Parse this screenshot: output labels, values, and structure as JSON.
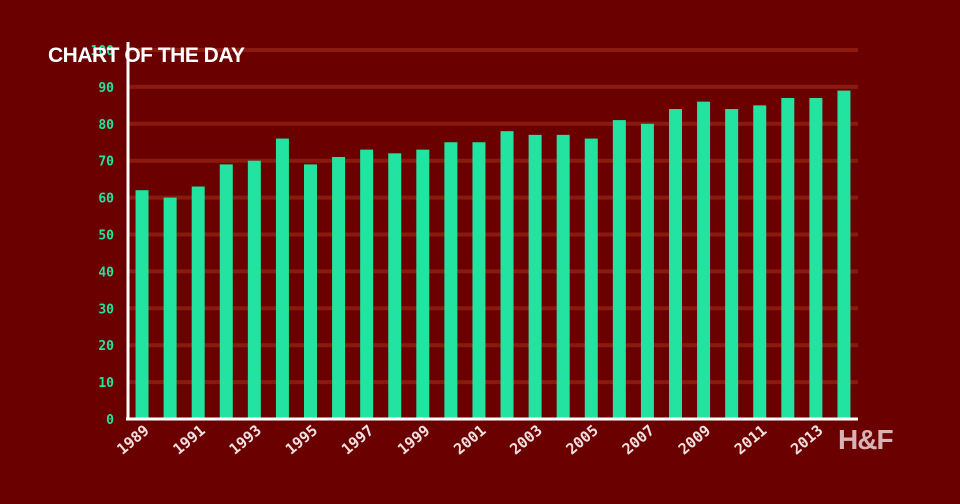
{
  "header": {
    "badge": "CHART OF THE DAY"
  },
  "brand": {
    "logo": "H&F"
  },
  "colors": {
    "background": "#6b0000",
    "bar": "#22e3a0",
    "grid": "#8a1a0e",
    "axis": "#ffffff",
    "ytick": "#22e3a0",
    "xtick": "#f2e0e0"
  },
  "chart_data": {
    "type": "bar",
    "categories": [
      "1989",
      "1990",
      "1991",
      "1992",
      "1993",
      "1994",
      "1995",
      "1996",
      "1997",
      "1998",
      "1999",
      "2000",
      "2001",
      "2002",
      "2003",
      "2004",
      "2005",
      "2006",
      "2007",
      "2008",
      "2009",
      "2010",
      "2011",
      "2012",
      "2013",
      "2014"
    ],
    "x_tick_labels": [
      "1989",
      "1991",
      "1993",
      "1995",
      "1997",
      "1999",
      "2001",
      "2003",
      "2005",
      "2007",
      "2009",
      "2011",
      "2013"
    ],
    "values": [
      62,
      60,
      63,
      69,
      70,
      76,
      69,
      71,
      73,
      72,
      73,
      75,
      75,
      78,
      77,
      77,
      76,
      81,
      80,
      84,
      86,
      84,
      85,
      87,
      87,
      89
    ],
    "ylim": [
      0,
      100
    ],
    "y_ticks": [
      0,
      10,
      20,
      30,
      40,
      50,
      60,
      70,
      80,
      90,
      100
    ],
    "grid": true,
    "xlabel": "",
    "ylabel": ""
  }
}
